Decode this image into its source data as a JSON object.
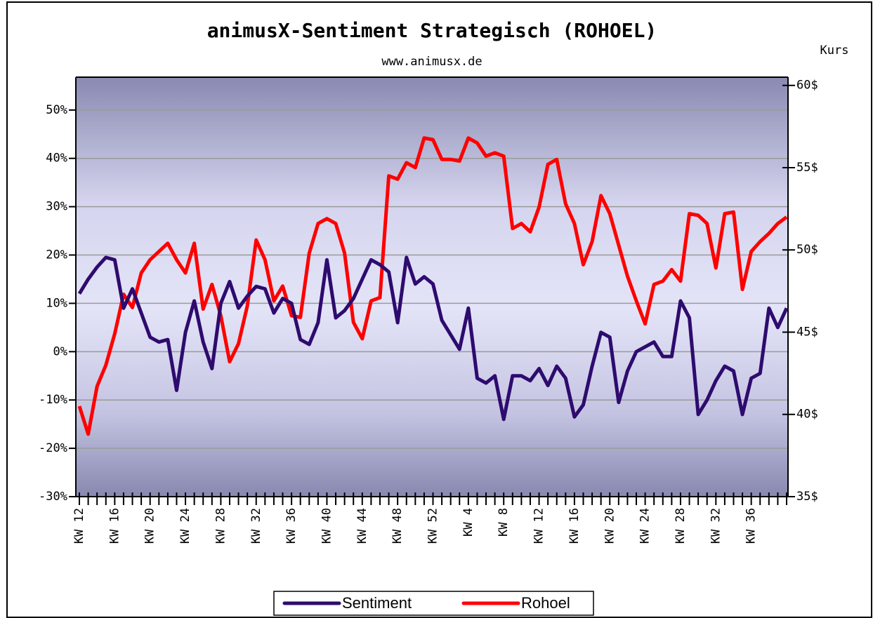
{
  "chart_data": {
    "type": "line",
    "title": "animusX-Sentiment Strategisch (ROHOEL)",
    "subtitle": "www.animusx.de",
    "y2_label": "Kurs",
    "categories": [
      "KW 12",
      null,
      null,
      null,
      "KW 16",
      null,
      null,
      null,
      "KW 20",
      null,
      null,
      null,
      "KW 24",
      null,
      null,
      null,
      "KW 28",
      null,
      null,
      null,
      "KW 32",
      null,
      null,
      null,
      "KW 36",
      null,
      null,
      null,
      "KW 40",
      null,
      null,
      null,
      "KW 44",
      null,
      null,
      null,
      "KW 48",
      null,
      null,
      null,
      "KW 52",
      null,
      null,
      null,
      "KW 4",
      null,
      null,
      null,
      "KW 8",
      null,
      null,
      null,
      "KW 12",
      null,
      null,
      null,
      "KW 16",
      null,
      null,
      null,
      "KW 20",
      null,
      null,
      null,
      "KW 24",
      null,
      null,
      null,
      "KW 28",
      null,
      null,
      null,
      "KW 32",
      null,
      null,
      null,
      "KW 36",
      null,
      null,
      null,
      null
    ],
    "series": [
      {
        "name": "Sentiment",
        "color": "#2e0b6e",
        "axis": "y",
        "values": [
          12,
          15,
          17.5,
          19.5,
          19,
          9,
          13,
          8,
          3,
          2,
          2.5,
          -8,
          4,
          10.5,
          2,
          -3.5,
          10,
          14.5,
          9,
          11.5,
          13.5,
          13,
          8,
          11,
          10,
          2.5,
          1.5,
          6,
          19,
          7,
          8.5,
          11,
          15,
          19,
          18,
          16.5,
          6,
          19.5,
          14,
          15.5,
          14,
          6.5,
          3.5,
          0.5,
          9,
          -5.5,
          -6.5,
          -5,
          -14,
          -5,
          -5,
          -6,
          -3.5,
          -7,
          -3,
          -5.5,
          -13.5,
          -11,
          -3,
          4,
          3,
          -10.5,
          -4,
          0,
          1,
          2,
          -1,
          -1,
          10.5,
          7,
          -13,
          -10,
          -6,
          -3,
          -4,
          -13,
          -5.5,
          -4.5,
          9,
          5,
          9
        ]
      },
      {
        "name": "Rohoel",
        "color": "#ff0000",
        "axis": "y2",
        "values": [
          40.5,
          38.8,
          41.7,
          43,
          44.9,
          47.3,
          46.5,
          48.6,
          49.4,
          49.9,
          50.4,
          49.4,
          48.6,
          50.4,
          46.4,
          47.9,
          46,
          43.2,
          44.3,
          46.6,
          50.6,
          49.4,
          46.9,
          47.8,
          46,
          45.9,
          49.8,
          51.6,
          51.9,
          51.6,
          49.8,
          45.6,
          44.6,
          46.9,
          47.1,
          54.5,
          54.3,
          55.3,
          55,
          56.8,
          56.7,
          55.5,
          55.5,
          55.4,
          56.8,
          56.5,
          55.7,
          55.9,
          55.7,
          51.3,
          51.6,
          51.1,
          52.6,
          55.2,
          55.5,
          52.8,
          51.6,
          49.1,
          50.5,
          53.3,
          52.2,
          50.3,
          48.4,
          46.9,
          45.5,
          47.9,
          48.1,
          48.8,
          48.1,
          52.2,
          52.1,
          51.6,
          48.9,
          52.2,
          52.3,
          47.6,
          49.9,
          50.5,
          51.0,
          51.6,
          52.0
        ]
      }
    ],
    "ylim": [
      -30,
      56.8
    ],
    "yticks": [
      {
        "value": -30,
        "label": "-30%"
      },
      {
        "value": -20,
        "label": "-20%"
      },
      {
        "value": -10,
        "label": "-10%"
      },
      {
        "value": 0,
        "label": "0%"
      },
      {
        "value": 10,
        "label": "10%"
      },
      {
        "value": 20,
        "label": "20%"
      },
      {
        "value": 30,
        "label": "30%"
      },
      {
        "value": 40,
        "label": "40%"
      },
      {
        "value": 50,
        "label": "50%"
      }
    ],
    "y2lim": [
      35,
      60.5
    ],
    "y2ticks": [
      {
        "value": 35,
        "label": "35$"
      },
      {
        "value": 40,
        "label": "40$"
      },
      {
        "value": 45,
        "label": "45$"
      },
      {
        "value": 50,
        "label": "50$"
      },
      {
        "value": 55,
        "label": "55$"
      },
      {
        "value": 60,
        "label": "60$"
      }
    ],
    "grid": true,
    "legend": "bottom"
  }
}
